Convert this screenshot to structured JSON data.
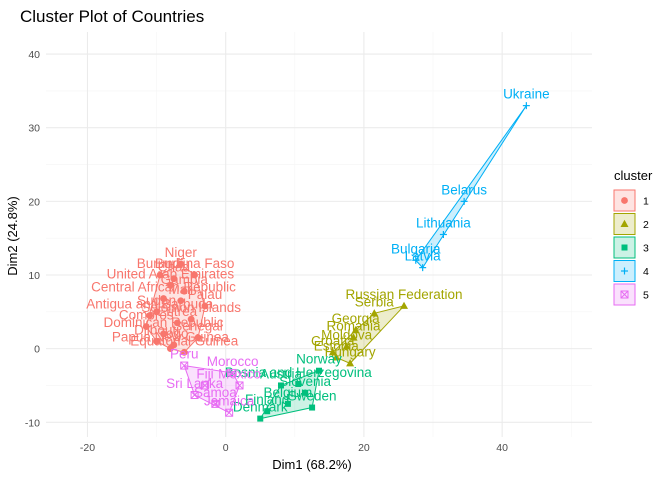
{
  "colors": {
    "1": "#F8766D",
    "2": "#A3A500",
    "3": "#00BF7D",
    "4": "#00B0F6",
    "5": "#E76BF3",
    "grid_major": "#EBEBEB",
    "grid_minor": "#F5F5F5"
  },
  "chart_data": {
    "type": "scatter",
    "title": "Cluster Plot of Countries",
    "xlabel": "Dim1 (68.2%)",
    "ylabel": "Dim2 (24.8%)",
    "xlim": [
      -26,
      53
    ],
    "ylim": [
      -12,
      43
    ],
    "x_ticks": [
      -20,
      0,
      20,
      40
    ],
    "y_ticks": [
      -10,
      0,
      10,
      20,
      30,
      40
    ],
    "grid": true,
    "legend": {
      "title": "cluster",
      "position": "right",
      "entries": [
        "1",
        "2",
        "3",
        "4",
        "5"
      ]
    },
    "clusters": [
      {
        "name": "1",
        "points": [
          {
            "label": "Niger",
            "x": -6.5,
            "y": 11.5
          },
          {
            "label": "Burkina Faso",
            "x": -4.5,
            "y": 10
          },
          {
            "label": "Burundi",
            "x": -9.5,
            "y": 10
          },
          {
            "label": "Chad",
            "x": -7.5,
            "y": 9.5
          },
          {
            "label": "United Arab Emirates",
            "x": -8,
            "y": 8.6
          },
          {
            "label": "Gambia",
            "x": -6,
            "y": 7.8
          },
          {
            "label": "Central African Republic",
            "x": -9,
            "y": 6.8
          },
          {
            "label": "Mali",
            "x": -6.5,
            "y": 6.5
          },
          {
            "label": "Palau",
            "x": -3,
            "y": 5.8
          },
          {
            "label": "Sudan",
            "x": -10,
            "y": 5
          },
          {
            "label": "Antigua and Barbuda",
            "x": -11,
            "y": 4.5
          },
          {
            "label": "Solomon Islands",
            "x": -5,
            "y": 4
          },
          {
            "label": "Comoros",
            "x": -11.5,
            "y": 3
          },
          {
            "label": "Eritrea",
            "x": -7,
            "y": 3.5
          },
          {
            "label": "Dominican Republic",
            "x": -9,
            "y": 2
          },
          {
            "label": "Djibouti",
            "x": -10,
            "y": 1
          },
          {
            "label": "Papua New Guinea",
            "x": -8,
            "y": 0
          },
          {
            "label": "Equatorial Guinea",
            "x": -6,
            "y": -0.5
          },
          {
            "label": "Senegal",
            "x": -4,
            "y": 1.5
          },
          {
            "label": "Togo",
            "x": -7.5,
            "y": 0.5
          }
        ]
      },
      {
        "name": "2",
        "points": [
          {
            "label": "Russian Federation",
            "x": 25.8,
            "y": 5.8
          },
          {
            "label": "Serbia",
            "x": 21.5,
            "y": 4.8
          },
          {
            "label": "Georgia",
            "x": 18.8,
            "y": 2.5
          },
          {
            "label": "Romania",
            "x": 18.5,
            "y": 1.5
          },
          {
            "label": "Moldova",
            "x": 17.5,
            "y": 0.3
          },
          {
            "label": "Croatia",
            "x": 15.5,
            "y": -0.5
          },
          {
            "label": "Estonia",
            "x": 16,
            "y": -1.2
          },
          {
            "label": "Hungary",
            "x": 18,
            "y": -2
          }
        ]
      },
      {
        "name": "3",
        "points": [
          {
            "label": "Norway",
            "x": 13.5,
            "y": -3
          },
          {
            "label": "Bosnia and Herzegovina",
            "x": 10.5,
            "y": -4.8
          },
          {
            "label": "Austria",
            "x": 8,
            "y": -5
          },
          {
            "label": "Slovenia",
            "x": 11.5,
            "y": -6
          },
          {
            "label": "Belgium",
            "x": 9,
            "y": -7.5
          },
          {
            "label": "Sweden",
            "x": 12.5,
            "y": -8
          },
          {
            "label": "Finland",
            "x": 6,
            "y": -8.5
          },
          {
            "label": "Denmark",
            "x": 5,
            "y": -9.5
          }
        ]
      },
      {
        "name": "4",
        "points": [
          {
            "label": "Ukraine",
            "x": 43.5,
            "y": 33
          },
          {
            "label": "Belarus",
            "x": 34.5,
            "y": 20
          },
          {
            "label": "Lithuania",
            "x": 31.5,
            "y": 15.5
          },
          {
            "label": "Bulgaria",
            "x": 27.5,
            "y": 12
          },
          {
            "label": "Latvia",
            "x": 28.5,
            "y": 11
          }
        ]
      },
      {
        "name": "5",
        "points": [
          {
            "label": "Morocco",
            "x": 1,
            "y": -3.3
          },
          {
            "label": "Peru",
            "x": -6,
            "y": -2.3
          },
          {
            "label": "Fiji",
            "x": -3,
            "y": -5
          },
          {
            "label": "Sri Lanka",
            "x": -4.5,
            "y": -6.3
          },
          {
            "label": "Mexico",
            "x": 2,
            "y": -5
          },
          {
            "label": "Samoa",
            "x": -1.5,
            "y": -7.5
          },
          {
            "label": "Jamaica",
            "x": 0.5,
            "y": -8.7
          }
        ]
      }
    ]
  }
}
